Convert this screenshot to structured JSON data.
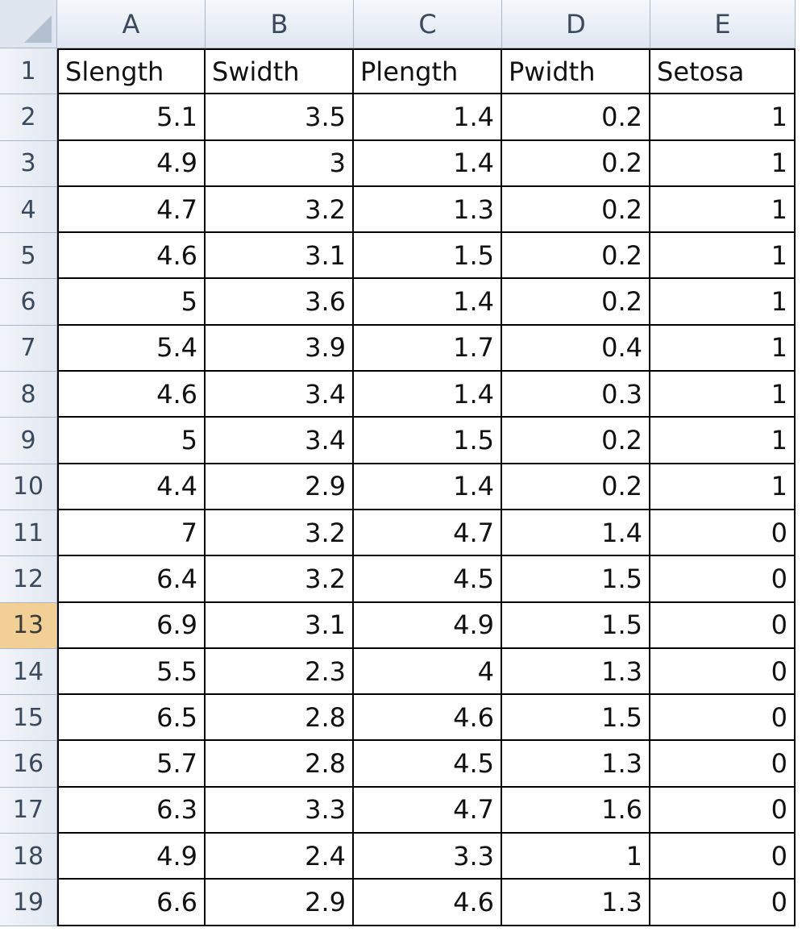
{
  "columns": [
    "A",
    "B",
    "C",
    "D",
    "E"
  ],
  "rows": [
    {
      "n": "1",
      "cells": [
        "Slength",
        "Swidth",
        "Plength",
        "Pwidth",
        "Setosa"
      ]
    },
    {
      "n": "2",
      "cells": [
        "5.1",
        "3.5",
        "1.4",
        "0.2",
        "1"
      ]
    },
    {
      "n": "3",
      "cells": [
        "4.9",
        "3",
        "1.4",
        "0.2",
        "1"
      ]
    },
    {
      "n": "4",
      "cells": [
        "4.7",
        "3.2",
        "1.3",
        "0.2",
        "1"
      ]
    },
    {
      "n": "5",
      "cells": [
        "4.6",
        "3.1",
        "1.5",
        "0.2",
        "1"
      ]
    },
    {
      "n": "6",
      "cells": [
        "5",
        "3.6",
        "1.4",
        "0.2",
        "1"
      ]
    },
    {
      "n": "7",
      "cells": [
        "5.4",
        "3.9",
        "1.7",
        "0.4",
        "1"
      ]
    },
    {
      "n": "8",
      "cells": [
        "4.6",
        "3.4",
        "1.4",
        "0.3",
        "1"
      ]
    },
    {
      "n": "9",
      "cells": [
        "5",
        "3.4",
        "1.5",
        "0.2",
        "1"
      ]
    },
    {
      "n": "10",
      "cells": [
        "4.4",
        "2.9",
        "1.4",
        "0.2",
        "1"
      ]
    },
    {
      "n": "11",
      "cells": [
        "7",
        "3.2",
        "4.7",
        "1.4",
        "0"
      ]
    },
    {
      "n": "12",
      "cells": [
        "6.4",
        "3.2",
        "4.5",
        "1.5",
        "0"
      ]
    },
    {
      "n": "13",
      "cells": [
        "6.9",
        "3.1",
        "4.9",
        "1.5",
        "0"
      ]
    },
    {
      "n": "14",
      "cells": [
        "5.5",
        "2.3",
        "4",
        "1.3",
        "0"
      ]
    },
    {
      "n": "15",
      "cells": [
        "6.5",
        "2.8",
        "4.6",
        "1.5",
        "0"
      ]
    },
    {
      "n": "16",
      "cells": [
        "5.7",
        "2.8",
        "4.5",
        "1.3",
        "0"
      ]
    },
    {
      "n": "17",
      "cells": [
        "6.3",
        "3.3",
        "4.7",
        "1.6",
        "0"
      ]
    },
    {
      "n": "18",
      "cells": [
        "4.9",
        "2.4",
        "3.3",
        "1",
        "0"
      ]
    },
    {
      "n": "19",
      "cells": [
        "6.6",
        "2.9",
        "4.6",
        "1.3",
        "0"
      ]
    }
  ],
  "selected_row": "13",
  "colors": {
    "header_bg": "#dfe6f0",
    "selected_row_header": "#f2cf94",
    "grid_border": "#000000"
  }
}
